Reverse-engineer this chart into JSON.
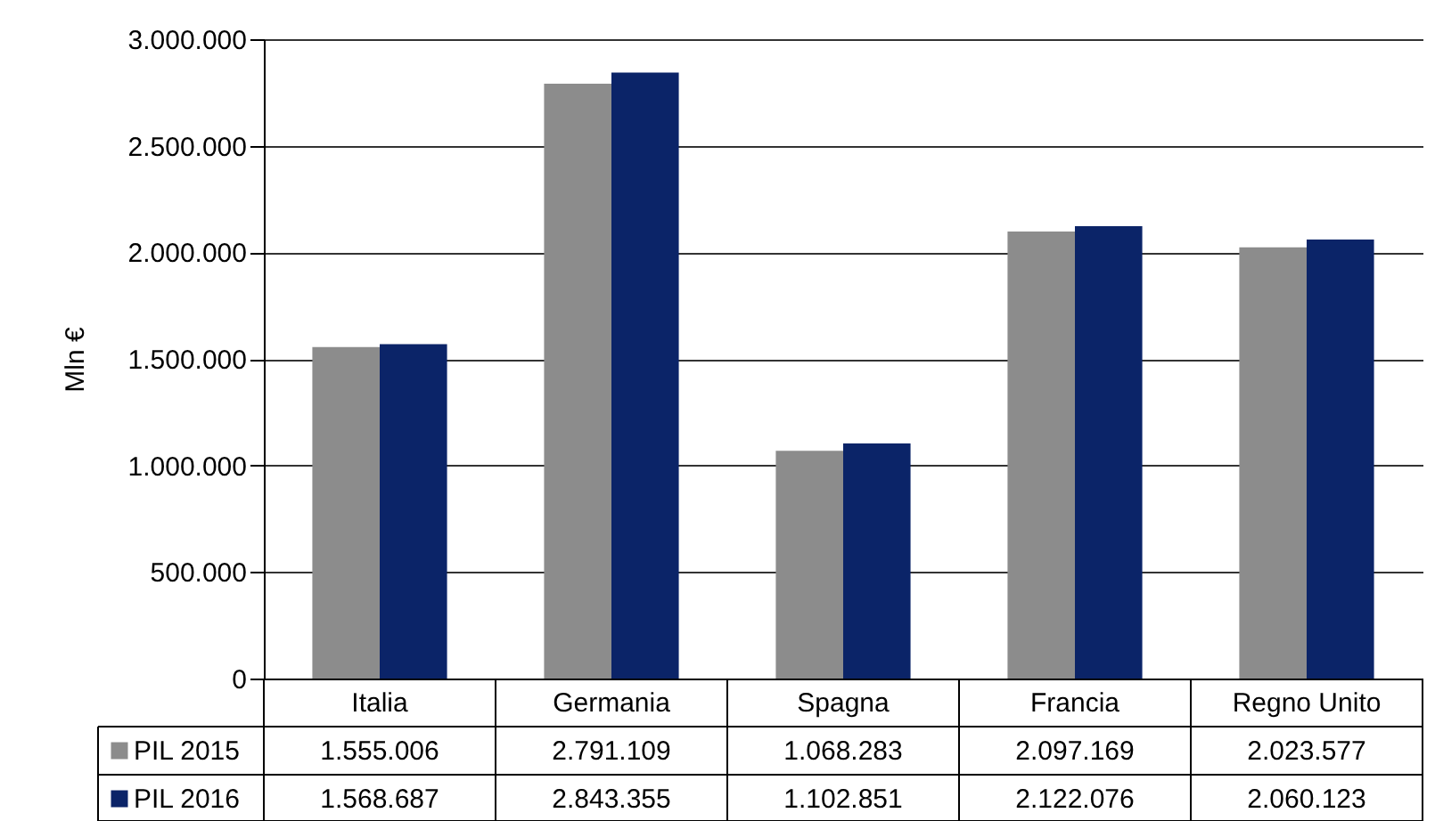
{
  "chart_data": {
    "type": "bar",
    "ylabel": "Mln €",
    "categories": [
      "Italia",
      "Germania",
      "Spagna",
      "Francia",
      "Regno Unito"
    ],
    "series": [
      {
        "name": "PIL 2015",
        "color": "#8c8c8c",
        "values": [
          1555006,
          2791109,
          1068283,
          2097169,
          2023577
        ],
        "value_labels": [
          "1.555.006",
          "2.791.109",
          "1.068.283",
          "2.097.169",
          "2.023.577"
        ]
      },
      {
        "name": "PIL 2016",
        "color": "#0b2468",
        "values": [
          1568687,
          2843355,
          1102851,
          2122076,
          2060123
        ],
        "value_labels": [
          "1.568.687",
          "2.843.355",
          "1.102.851",
          "2.122.076",
          "2.060.123"
        ]
      }
    ],
    "ylim": [
      0,
      3000000
    ],
    "yticks": [
      0,
      {
        "value": 500000,
        "label": "500.000"
      },
      {
        "value": 1000000,
        "label": "1.000.000"
      },
      {
        "value": 1500000,
        "label": "1.500.000"
      },
      {
        "value": 2000000,
        "label": "2.000.000"
      },
      {
        "value": 2500000,
        "label": "2.500.000"
      },
      {
        "value": 3000000,
        "label": "3.000.000"
      }
    ],
    "grid": "y",
    "legend": "bottom"
  }
}
